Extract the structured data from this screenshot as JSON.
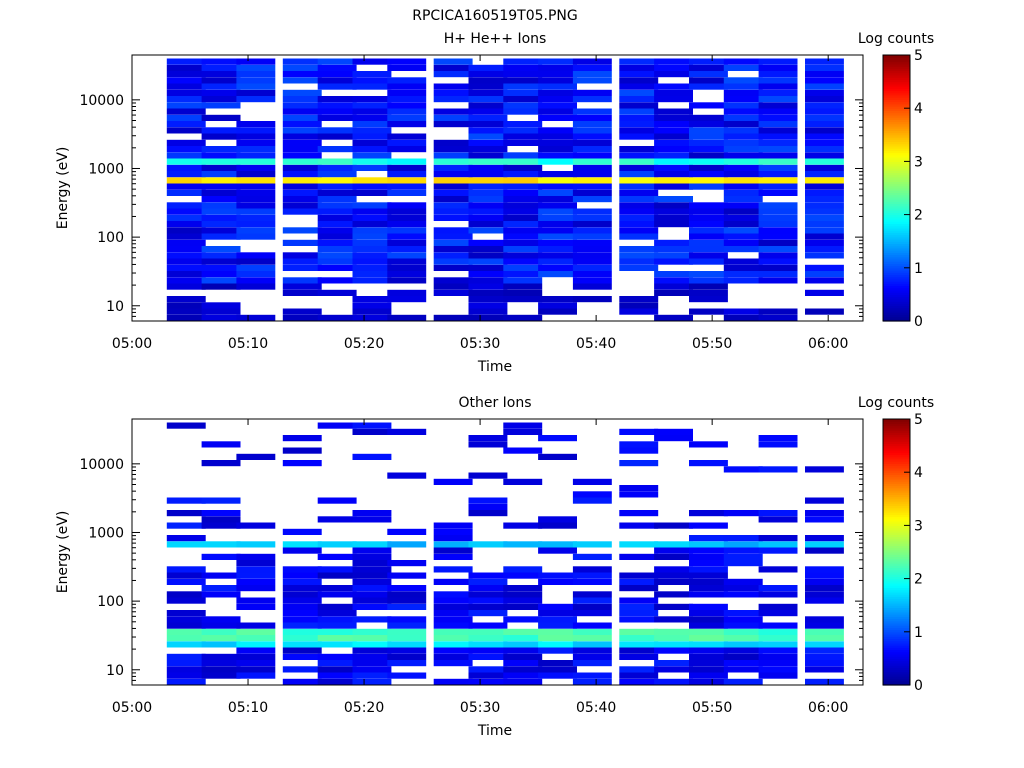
{
  "figure_title": "RPCICA160519T05.PNG",
  "colormap": [
    "#00008f",
    "#0000ff",
    "#0080ff",
    "#00ffff",
    "#80ff80",
    "#ffff00",
    "#ff8000",
    "#ff0000",
    "#800000"
  ],
  "chart_data": [
    {
      "type": "heatmap",
      "title": "H+ He++ Ions",
      "xlabel": "Time",
      "ylabel": "Energy (eV)",
      "colorbar_label": "Log counts",
      "x_range": [
        "05:00",
        "06:03"
      ],
      "x_ticks": [
        "05:00",
        "05:10",
        "05:20",
        "05:30",
        "05:40",
        "05:50",
        "06:00"
      ],
      "y_scale": "log",
      "y_range": [
        6,
        45000
      ],
      "y_ticks": [
        "10",
        "100",
        "1000",
        "10000"
      ],
      "colorbar_range": [
        0,
        5
      ],
      "colorbar_ticks": [
        "0",
        "1",
        "2",
        "3",
        "4",
        "5"
      ],
      "time_bins": [
        "05:03",
        "05:06",
        "05:09",
        "05:13",
        "05:16",
        "05:19",
        "05:22",
        "05:26",
        "05:29",
        "05:32",
        "05:35",
        "05:38",
        "05:42",
        "05:45",
        "05:48",
        "05:51",
        "05:54",
        "05:58"
      ],
      "data_start_energy": 22,
      "bands": [
        {
          "energy": [
            1200,
            1450
          ],
          "log_counts": 2.0
        },
        {
          "energy": [
            600,
            720
          ],
          "log_counts": 3.2
        }
      ],
      "background_log_counts": 0.5
    },
    {
      "type": "heatmap",
      "title": "Other Ions",
      "xlabel": "Time",
      "ylabel": "Energy (eV)",
      "colorbar_label": "Log counts",
      "x_range": [
        "05:00",
        "06:03"
      ],
      "x_ticks": [
        "05:00",
        "05:10",
        "05:20",
        "05:30",
        "05:40",
        "05:50",
        "06:00"
      ],
      "y_scale": "log",
      "y_range": [
        6,
        45000
      ],
      "y_ticks": [
        "10",
        "100",
        "1000",
        "10000"
      ],
      "colorbar_range": [
        0,
        5
      ],
      "colorbar_ticks": [
        "0",
        "1",
        "2",
        "3",
        "4",
        "5"
      ],
      "time_bins": [
        "05:03",
        "05:06",
        "05:09",
        "05:13",
        "05:16",
        "05:19",
        "05:22",
        "05:26",
        "05:29",
        "05:32",
        "05:35",
        "05:38",
        "05:42",
        "05:45",
        "05:48",
        "05:51",
        "05:54",
        "05:58"
      ],
      "bands": [
        {
          "energy": [
            600,
            720
          ],
          "log_counts": 1.6
        },
        {
          "energy": [
            28,
            36
          ],
          "log_counts": 2.2
        },
        {
          "energy": [
            22,
            28
          ],
          "log_counts": 1.7
        }
      ],
      "background_log_counts": 0.3
    }
  ]
}
